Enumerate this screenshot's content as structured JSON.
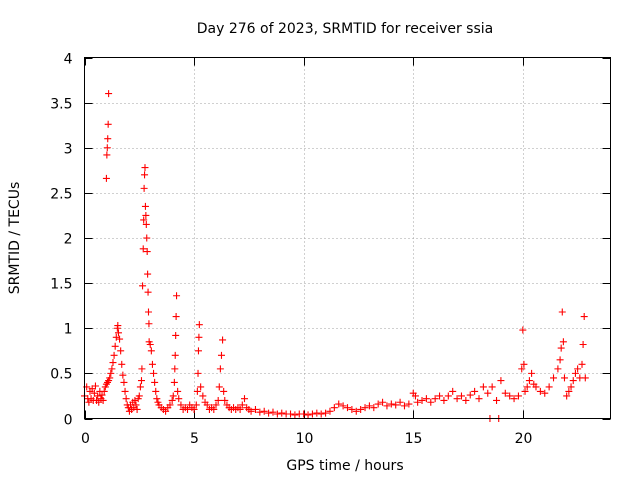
{
  "chart_data": {
    "type": "scatter",
    "title": "Day 276 of 2023, SRMTID for receiver ssia",
    "xlabel": "GPS time / hours",
    "ylabel": "SRMTID / TECUs",
    "xlim": [
      0,
      24
    ],
    "ylim": [
      0,
      4
    ],
    "xticks": [
      0,
      5,
      10,
      15,
      20
    ],
    "yticks": [
      0,
      0.5,
      1,
      1.5,
      2,
      2.5,
      3,
      3.5,
      4
    ],
    "grid": true,
    "marker": "+",
    "marker_color": "#ff0000",
    "series": [
      {
        "name": "SRMTID",
        "points": [
          [
            0.0,
            0.25
          ],
          [
            0.1,
            0.35
          ],
          [
            0.15,
            0.22
          ],
          [
            0.2,
            0.18
          ],
          [
            0.25,
            0.3
          ],
          [
            0.3,
            0.22
          ],
          [
            0.35,
            0.33
          ],
          [
            0.4,
            0.2
          ],
          [
            0.45,
            0.28
          ],
          [
            0.5,
            0.36
          ],
          [
            0.55,
            0.2
          ],
          [
            0.6,
            0.25
          ],
          [
            0.65,
            0.18
          ],
          [
            0.7,
            0.3
          ],
          [
            0.75,
            0.22
          ],
          [
            0.8,
            0.26
          ],
          [
            0.85,
            0.2
          ],
          [
            0.9,
            0.3
          ],
          [
            0.95,
            0.35
          ],
          [
            1.0,
            0.38
          ],
          [
            1.0,
            2.66
          ],
          [
            1.02,
            2.92
          ],
          [
            1.04,
            3.0
          ],
          [
            1.06,
            3.1
          ],
          [
            1.08,
            3.26
          ],
          [
            1.1,
            3.6
          ],
          [
            1.05,
            0.4
          ],
          [
            1.1,
            0.42
          ],
          [
            1.15,
            0.45
          ],
          [
            1.2,
            0.5
          ],
          [
            1.25,
            0.55
          ],
          [
            1.3,
            0.62
          ],
          [
            1.35,
            0.7
          ],
          [
            1.4,
            0.8
          ],
          [
            1.45,
            0.9
          ],
          [
            1.5,
            1.0
          ],
          [
            1.52,
            1.03
          ],
          [
            1.55,
            0.95
          ],
          [
            1.6,
            0.88
          ],
          [
            1.65,
            0.75
          ],
          [
            1.7,
            0.6
          ],
          [
            1.75,
            0.48
          ],
          [
            1.8,
            0.4
          ],
          [
            1.85,
            0.3
          ],
          [
            1.9,
            0.22
          ],
          [
            1.95,
            0.15
          ],
          [
            2.0,
            0.12
          ],
          [
            2.05,
            0.08
          ],
          [
            2.1,
            0.15
          ],
          [
            2.15,
            0.1
          ],
          [
            2.2,
            0.18
          ],
          [
            2.25,
            0.12
          ],
          [
            2.3,
            0.2
          ],
          [
            2.35,
            0.15
          ],
          [
            2.4,
            0.1
          ],
          [
            2.45,
            0.22
          ],
          [
            2.5,
            0.25
          ],
          [
            2.55,
            0.35
          ],
          [
            2.6,
            0.42
          ],
          [
            2.62,
            0.55
          ],
          [
            2.65,
            1.47
          ],
          [
            2.68,
            1.88
          ],
          [
            2.7,
            2.2
          ],
          [
            2.72,
            2.55
          ],
          [
            2.74,
            2.7
          ],
          [
            2.76,
            2.78
          ],
          [
            2.78,
            2.35
          ],
          [
            2.8,
            2.25
          ],
          [
            2.82,
            2.15
          ],
          [
            2.84,
            2.0
          ],
          [
            2.86,
            1.85
          ],
          [
            2.88,
            1.6
          ],
          [
            2.9,
            1.4
          ],
          [
            2.92,
            1.18
          ],
          [
            2.94,
            1.05
          ],
          [
            2.95,
            0.85
          ],
          [
            3.0,
            0.82
          ],
          [
            3.05,
            0.75
          ],
          [
            3.1,
            0.6
          ],
          [
            3.15,
            0.5
          ],
          [
            3.2,
            0.4
          ],
          [
            3.25,
            0.3
          ],
          [
            3.3,
            0.22
          ],
          [
            3.35,
            0.18
          ],
          [
            3.4,
            0.15
          ],
          [
            3.5,
            0.12
          ],
          [
            3.6,
            0.1
          ],
          [
            3.7,
            0.08
          ],
          [
            3.8,
            0.12
          ],
          [
            3.9,
            0.15
          ],
          [
            4.0,
            0.2
          ],
          [
            4.05,
            0.25
          ],
          [
            4.1,
            0.4
          ],
          [
            4.12,
            0.55
          ],
          [
            4.14,
            0.7
          ],
          [
            4.16,
            0.92
          ],
          [
            4.18,
            1.13
          ],
          [
            4.2,
            1.36
          ],
          [
            4.25,
            0.3
          ],
          [
            4.3,
            0.22
          ],
          [
            4.4,
            0.15
          ],
          [
            4.5,
            0.1
          ],
          [
            4.6,
            0.12
          ],
          [
            4.7,
            0.1
          ],
          [
            4.8,
            0.15
          ],
          [
            4.9,
            0.12
          ],
          [
            5.0,
            0.1
          ],
          [
            5.1,
            0.15
          ],
          [
            5.15,
            0.3
          ],
          [
            5.18,
            0.5
          ],
          [
            5.2,
            0.75
          ],
          [
            5.22,
            0.9
          ],
          [
            5.24,
            1.04
          ],
          [
            5.3,
            0.35
          ],
          [
            5.4,
            0.25
          ],
          [
            5.5,
            0.18
          ],
          [
            5.6,
            0.15
          ],
          [
            5.7,
            0.1
          ],
          [
            5.8,
            0.12
          ],
          [
            5.9,
            0.1
          ],
          [
            6.0,
            0.15
          ],
          [
            6.1,
            0.2
          ],
          [
            6.15,
            0.35
          ],
          [
            6.2,
            0.55
          ],
          [
            6.25,
            0.7
          ],
          [
            6.3,
            0.87
          ],
          [
            6.35,
            0.3
          ],
          [
            6.4,
            0.2
          ],
          [
            6.5,
            0.15
          ],
          [
            6.6,
            0.12
          ],
          [
            6.7,
            0.1
          ],
          [
            6.8,
            0.12
          ],
          [
            6.9,
            0.1
          ],
          [
            7.0,
            0.12
          ],
          [
            7.1,
            0.1
          ],
          [
            7.2,
            0.15
          ],
          [
            7.3,
            0.22
          ],
          [
            7.4,
            0.12
          ],
          [
            7.5,
            0.1
          ],
          [
            7.6,
            0.08
          ],
          [
            7.8,
            0.1
          ],
          [
            8.0,
            0.07
          ],
          [
            8.2,
            0.08
          ],
          [
            8.4,
            0.06
          ],
          [
            8.6,
            0.07
          ],
          [
            8.8,
            0.05
          ],
          [
            9.0,
            0.06
          ],
          [
            9.2,
            0.05
          ],
          [
            9.4,
            0.05
          ],
          [
            9.6,
            0.04
          ],
          [
            9.8,
            0.05
          ],
          [
            10.0,
            0.05
          ],
          [
            10.2,
            0.04
          ],
          [
            10.4,
            0.05
          ],
          [
            10.6,
            0.06
          ],
          [
            10.8,
            0.05
          ],
          [
            11.0,
            0.06
          ],
          [
            11.2,
            0.08
          ],
          [
            11.4,
            0.12
          ],
          [
            11.6,
            0.16
          ],
          [
            11.8,
            0.14
          ],
          [
            12.0,
            0.12
          ],
          [
            12.2,
            0.1
          ],
          [
            12.4,
            0.08
          ],
          [
            12.6,
            0.1
          ],
          [
            12.8,
            0.12
          ],
          [
            13.0,
            0.14
          ],
          [
            13.2,
            0.12
          ],
          [
            13.4,
            0.16
          ],
          [
            13.6,
            0.18
          ],
          [
            13.8,
            0.14
          ],
          [
            14.0,
            0.16
          ],
          [
            14.2,
            0.15
          ],
          [
            14.4,
            0.18
          ],
          [
            14.6,
            0.14
          ],
          [
            14.8,
            0.16
          ],
          [
            15.0,
            0.28
          ],
          [
            15.1,
            0.25
          ],
          [
            15.2,
            0.18
          ],
          [
            15.4,
            0.2
          ],
          [
            15.6,
            0.22
          ],
          [
            15.8,
            0.18
          ],
          [
            16.0,
            0.22
          ],
          [
            16.2,
            0.25
          ],
          [
            16.4,
            0.2
          ],
          [
            16.6,
            0.25
          ],
          [
            16.8,
            0.3
          ],
          [
            17.0,
            0.22
          ],
          [
            17.2,
            0.25
          ],
          [
            17.4,
            0.2
          ],
          [
            17.6,
            0.26
          ],
          [
            17.8,
            0.3
          ],
          [
            18.0,
            0.22
          ],
          [
            18.2,
            0.35
          ],
          [
            18.4,
            0.28
          ],
          [
            18.5,
            0.0
          ],
          [
            18.6,
            0.35
          ],
          [
            18.8,
            0.2
          ],
          [
            18.9,
            0.0
          ],
          [
            19.0,
            0.42
          ],
          [
            19.2,
            0.28
          ],
          [
            19.4,
            0.25
          ],
          [
            19.6,
            0.22
          ],
          [
            19.8,
            0.25
          ],
          [
            19.95,
            0.55
          ],
          [
            20.0,
            0.98
          ],
          [
            20.05,
            0.6
          ],
          [
            20.1,
            0.3
          ],
          [
            20.2,
            0.35
          ],
          [
            20.3,
            0.42
          ],
          [
            20.4,
            0.5
          ],
          [
            20.5,
            0.38
          ],
          [
            20.6,
            0.35
          ],
          [
            20.8,
            0.3
          ],
          [
            21.0,
            0.28
          ],
          [
            21.2,
            0.35
          ],
          [
            21.4,
            0.45
          ],
          [
            21.6,
            0.55
          ],
          [
            21.7,
            0.65
          ],
          [
            21.75,
            0.78
          ],
          [
            21.8,
            1.18
          ],
          [
            21.85,
            0.85
          ],
          [
            21.9,
            0.45
          ],
          [
            22.0,
            0.25
          ],
          [
            22.1,
            0.3
          ],
          [
            22.2,
            0.35
          ],
          [
            22.3,
            0.42
          ],
          [
            22.4,
            0.5
          ],
          [
            22.5,
            0.55
          ],
          [
            22.6,
            0.45
          ],
          [
            22.7,
            0.6
          ],
          [
            22.75,
            0.82
          ],
          [
            22.8,
            1.13
          ],
          [
            22.85,
            0.45
          ]
        ]
      }
    ]
  }
}
